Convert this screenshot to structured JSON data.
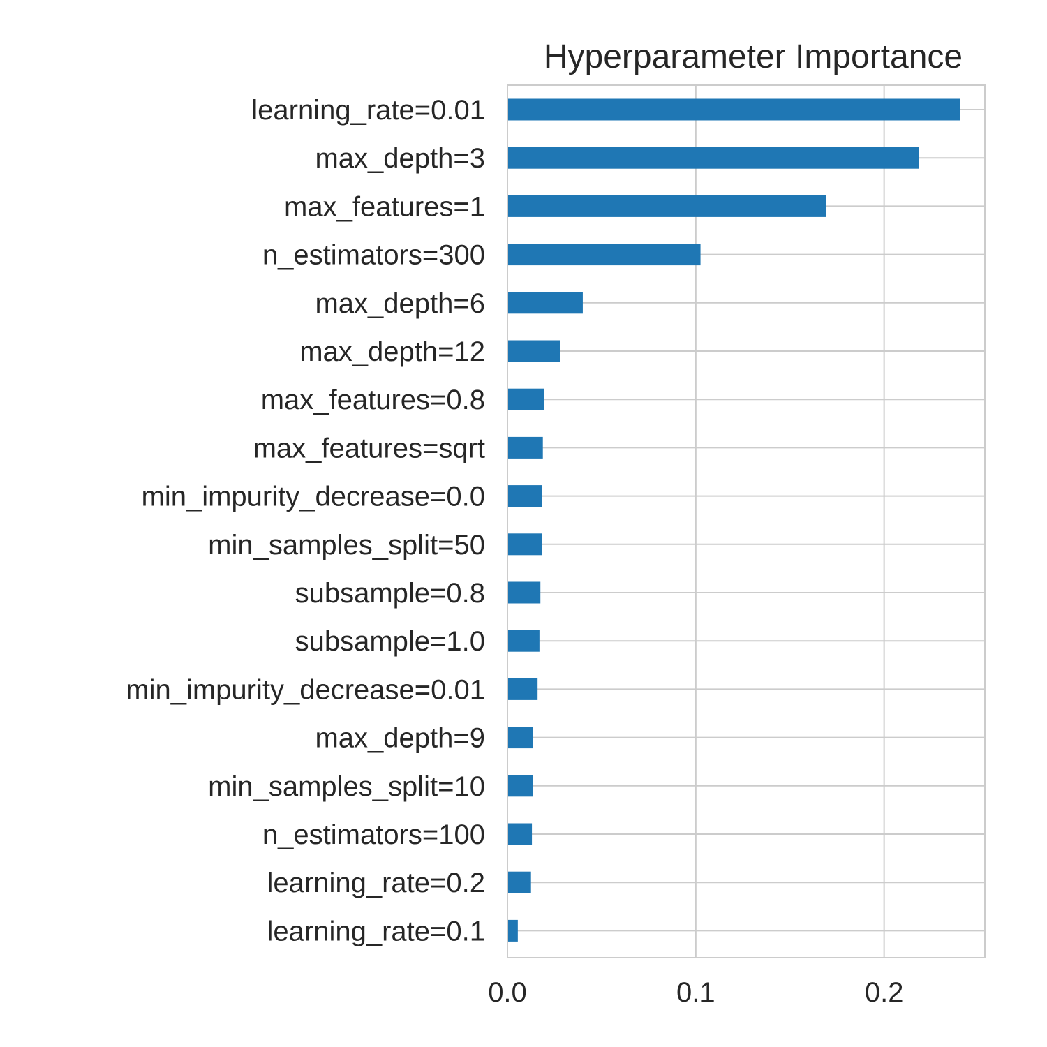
{
  "chart_data": {
    "type": "bar",
    "orientation": "horizontal",
    "title": "Hyperparameter Importance",
    "xlabel": "",
    "ylabel": "",
    "xlim": [
      0,
      0.2535
    ],
    "xticks": [
      0.0,
      0.1,
      0.2
    ],
    "xtick_labels": [
      "0.0",
      "0.1",
      "0.2"
    ],
    "grid": true,
    "bar_color": "#1f77b4",
    "categories": [
      "learning_rate=0.01",
      "max_depth=3",
      "max_features=1",
      "n_estimators=300",
      "max_depth=6",
      "max_depth=12",
      "max_features=0.8",
      "max_features=sqrt",
      "min_impurity_decrease=0.0",
      "min_samples_split=50",
      "subsample=0.8",
      "subsample=1.0",
      "min_impurity_decrease=0.01",
      "max_depth=9",
      "min_samples_split=10",
      "n_estimators=100",
      "learning_rate=0.2",
      "learning_rate=0.1"
    ],
    "values": [
      0.2405,
      0.2185,
      0.169,
      0.1025,
      0.04,
      0.028,
      0.0195,
      0.0188,
      0.0185,
      0.0182,
      0.0175,
      0.017,
      0.016,
      0.0135,
      0.0135,
      0.013,
      0.0125,
      0.0055
    ]
  },
  "colors": {
    "bar": "#1f77b4",
    "grid": "#cccccc",
    "text": "#262626",
    "background": "#ffffff"
  }
}
